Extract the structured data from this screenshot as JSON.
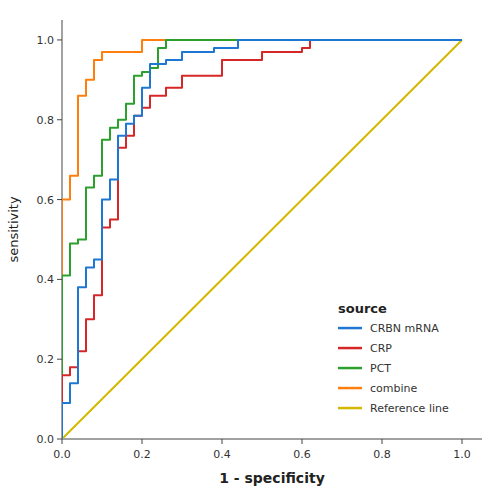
{
  "chart_data": {
    "type": "line",
    "xlabel": "1 - specificity",
    "ylabel": "sensitivity",
    "legend_title": "source",
    "legend": "lower right",
    "grid": false,
    "xlim": [
      0.0,
      1.05
    ],
    "ylim": [
      0.0,
      1.05
    ],
    "xticks": [
      {
        "value": 0.0,
        "label": "0.0"
      },
      0.2,
      0.4,
      0.6,
      0.8,
      {
        "value": 1.0,
        "label": "1.0"
      }
    ],
    "yticks": [
      {
        "value": 0.0,
        "label": "0.0"
      },
      0.2,
      0.4,
      0.6,
      0.8,
      {
        "value": 1.0,
        "label": "1.0"
      }
    ],
    "series": [
      {
        "name": "CRBN mRNA",
        "color": "#1f77d4",
        "x": [
          0.0,
          0.0,
          0.02,
          0.02,
          0.04,
          0.04,
          0.06,
          0.06,
          0.08,
          0.08,
          0.1,
          0.1,
          0.12,
          0.12,
          0.14,
          0.14,
          0.16,
          0.16,
          0.18,
          0.18,
          0.2,
          0.2,
          0.22,
          0.22,
          0.26,
          0.26,
          0.3,
          0.3,
          0.38,
          0.38,
          0.44,
          0.44,
          0.5,
          0.5,
          0.58,
          0.58,
          0.62,
          0.62,
          1.0
        ],
        "values": [
          0.0,
          0.09,
          0.09,
          0.14,
          0.14,
          0.38,
          0.38,
          0.43,
          0.43,
          0.45,
          0.45,
          0.6,
          0.6,
          0.65,
          0.65,
          0.76,
          0.76,
          0.79,
          0.79,
          0.81,
          0.81,
          0.88,
          0.88,
          0.94,
          0.94,
          0.95,
          0.95,
          0.97,
          0.97,
          0.98,
          0.98,
          1.0,
          1.0,
          1.0,
          1.0,
          1.0,
          1.0,
          1.0,
          1.0
        ]
      },
      {
        "name": "CRP",
        "color": "#d62728",
        "x": [
          0.0,
          0.0,
          0.02,
          0.02,
          0.04,
          0.04,
          0.06,
          0.06,
          0.08,
          0.08,
          0.1,
          0.1,
          0.12,
          0.12,
          0.14,
          0.14,
          0.16,
          0.16,
          0.18,
          0.18,
          0.2,
          0.2,
          0.22,
          0.22,
          0.26,
          0.26,
          0.3,
          0.3,
          0.4,
          0.4,
          0.5,
          0.5,
          0.6,
          0.6,
          0.62,
          0.62,
          1.0
        ],
        "values": [
          0.0,
          0.16,
          0.16,
          0.18,
          0.18,
          0.22,
          0.22,
          0.3,
          0.3,
          0.36,
          0.36,
          0.53,
          0.53,
          0.55,
          0.55,
          0.73,
          0.73,
          0.76,
          0.76,
          0.81,
          0.81,
          0.83,
          0.83,
          0.86,
          0.86,
          0.88,
          0.88,
          0.91,
          0.91,
          0.95,
          0.95,
          0.97,
          0.97,
          0.98,
          0.98,
          1.0,
          1.0
        ]
      },
      {
        "name": "PCT",
        "color": "#2ca02c",
        "x": [
          0.0,
          0.0,
          0.02,
          0.02,
          0.04,
          0.04,
          0.06,
          0.06,
          0.08,
          0.08,
          0.1,
          0.1,
          0.12,
          0.12,
          0.14,
          0.14,
          0.16,
          0.16,
          0.18,
          0.18,
          0.2,
          0.2,
          0.22,
          0.22,
          0.24,
          0.24,
          0.26,
          0.26,
          0.3,
          0.3,
          0.6,
          0.6,
          0.62,
          0.62,
          1.0
        ],
        "values": [
          0.0,
          0.41,
          0.41,
          0.49,
          0.49,
          0.5,
          0.5,
          0.63,
          0.63,
          0.66,
          0.66,
          0.75,
          0.75,
          0.78,
          0.78,
          0.8,
          0.8,
          0.84,
          0.84,
          0.91,
          0.91,
          0.92,
          0.92,
          0.93,
          0.93,
          0.98,
          0.98,
          1.0,
          1.0,
          1.0,
          1.0,
          1.0,
          1.0,
          1.0,
          1.0
        ]
      },
      {
        "name": "combine",
        "color": "#ff7f0e",
        "x": [
          0.0,
          0.0,
          0.02,
          0.02,
          0.04,
          0.04,
          0.06,
          0.06,
          0.08,
          0.08,
          0.1,
          0.1,
          0.2,
          0.2,
          0.62,
          0.62,
          1.0
        ],
        "values": [
          0.0,
          0.6,
          0.6,
          0.66,
          0.66,
          0.86,
          0.86,
          0.9,
          0.9,
          0.95,
          0.95,
          0.97,
          0.97,
          1.0,
          1.0,
          1.0,
          1.0
        ]
      },
      {
        "name": "Reference line",
        "color": "#d4b800",
        "x": [
          0.0,
          1.0
        ],
        "values": [
          0.0,
          1.0
        ]
      }
    ]
  }
}
